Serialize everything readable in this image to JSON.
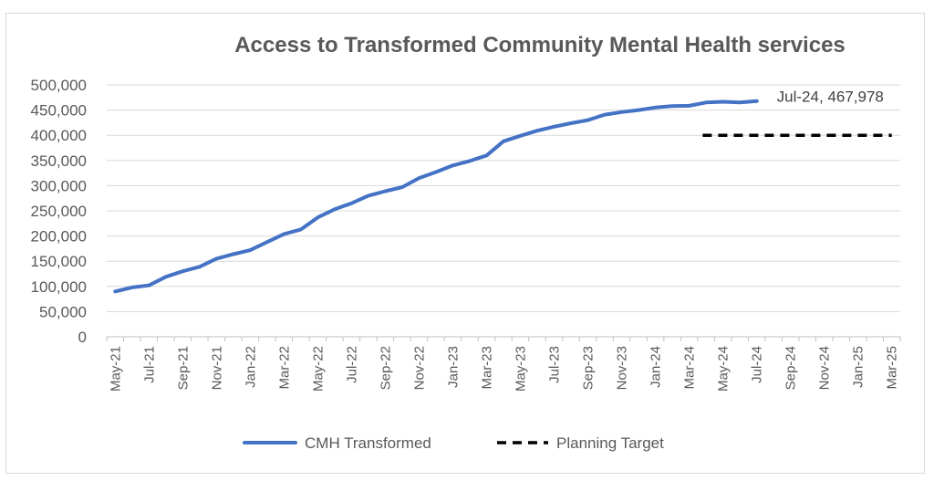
{
  "chart_data": {
    "type": "line",
    "title": "Access to Transformed Community Mental Health services",
    "xlabel": "",
    "ylabel": "",
    "ylim": [
      0,
      500000
    ],
    "y_ticks": [
      "0",
      "50,000",
      "100,000",
      "150,000",
      "200,000",
      "250,000",
      "300,000",
      "350,000",
      "400,000",
      "450,000",
      "500,000"
    ],
    "grid": true,
    "legend_position": "bottom",
    "categories": [
      "May-21",
      "Jun-21",
      "Jul-21",
      "Aug-21",
      "Sep-21",
      "Oct-21",
      "Nov-21",
      "Dec-21",
      "Jan-22",
      "Feb-22",
      "Mar-22",
      "Apr-22",
      "May-22",
      "Jun-22",
      "Jul-22",
      "Aug-22",
      "Sep-22",
      "Oct-22",
      "Nov-22",
      "Dec-22",
      "Jan-23",
      "Feb-23",
      "Mar-23",
      "Apr-23",
      "May-23",
      "Jun-23",
      "Jul-23",
      "Aug-23",
      "Sep-23",
      "Oct-23",
      "Nov-23",
      "Dec-23",
      "Jan-24",
      "Feb-24",
      "Mar-24",
      "Apr-24",
      "May-24",
      "Jun-24",
      "Jul-24",
      "Aug-24",
      "Sep-24",
      "Oct-24",
      "Nov-24",
      "Dec-24",
      "Jan-25",
      "Feb-25",
      "Mar-25"
    ],
    "x_tick_labels": [
      "May-21",
      "Jul-21",
      "Sep-21",
      "Nov-21",
      "Jan-22",
      "Mar-22",
      "May-22",
      "Jul-22",
      "Sep-22",
      "Nov-22",
      "Jan-23",
      "Mar-23",
      "May-23",
      "Jul-23",
      "Sep-23",
      "Nov-23",
      "Jan-24",
      "Mar-24",
      "May-24",
      "Jul-24",
      "Sep-24",
      "Nov-24",
      "Jan-25",
      "Mar-25"
    ],
    "series": [
      {
        "name": "CMH Transformed",
        "color": "#4472c4",
        "style": "solid",
        "values": [
          90000,
          98000,
          102000,
          119000,
          130000,
          139000,
          155000,
          164000,
          172000,
          188000,
          204000,
          213000,
          237000,
          253000,
          265000,
          280000,
          289000,
          297000,
          315000,
          327000,
          340000,
          349000,
          360000,
          388000,
          399000,
          409000,
          417000,
          424000,
          430000,
          441000,
          446000,
          450000,
          455000,
          458000,
          458500,
          465000,
          466500,
          465000,
          467978,
          null,
          null,
          null,
          null,
          null,
          null,
          null,
          null
        ]
      },
      {
        "name": "Planning Target",
        "color": "#000000",
        "style": "dashed",
        "values": [
          null,
          null,
          null,
          null,
          null,
          null,
          null,
          null,
          null,
          null,
          null,
          null,
          null,
          null,
          null,
          null,
          null,
          null,
          null,
          null,
          null,
          null,
          null,
          null,
          null,
          null,
          null,
          null,
          null,
          null,
          null,
          null,
          null,
          null,
          null,
          400000,
          400000,
          400000,
          400000,
          400000,
          400000,
          400000,
          400000,
          400000,
          400000,
          400000,
          400000
        ]
      }
    ],
    "annotations": [
      {
        "text": "Jul-24, 467,978",
        "category": "Jul-24",
        "value": 467978
      }
    ]
  }
}
